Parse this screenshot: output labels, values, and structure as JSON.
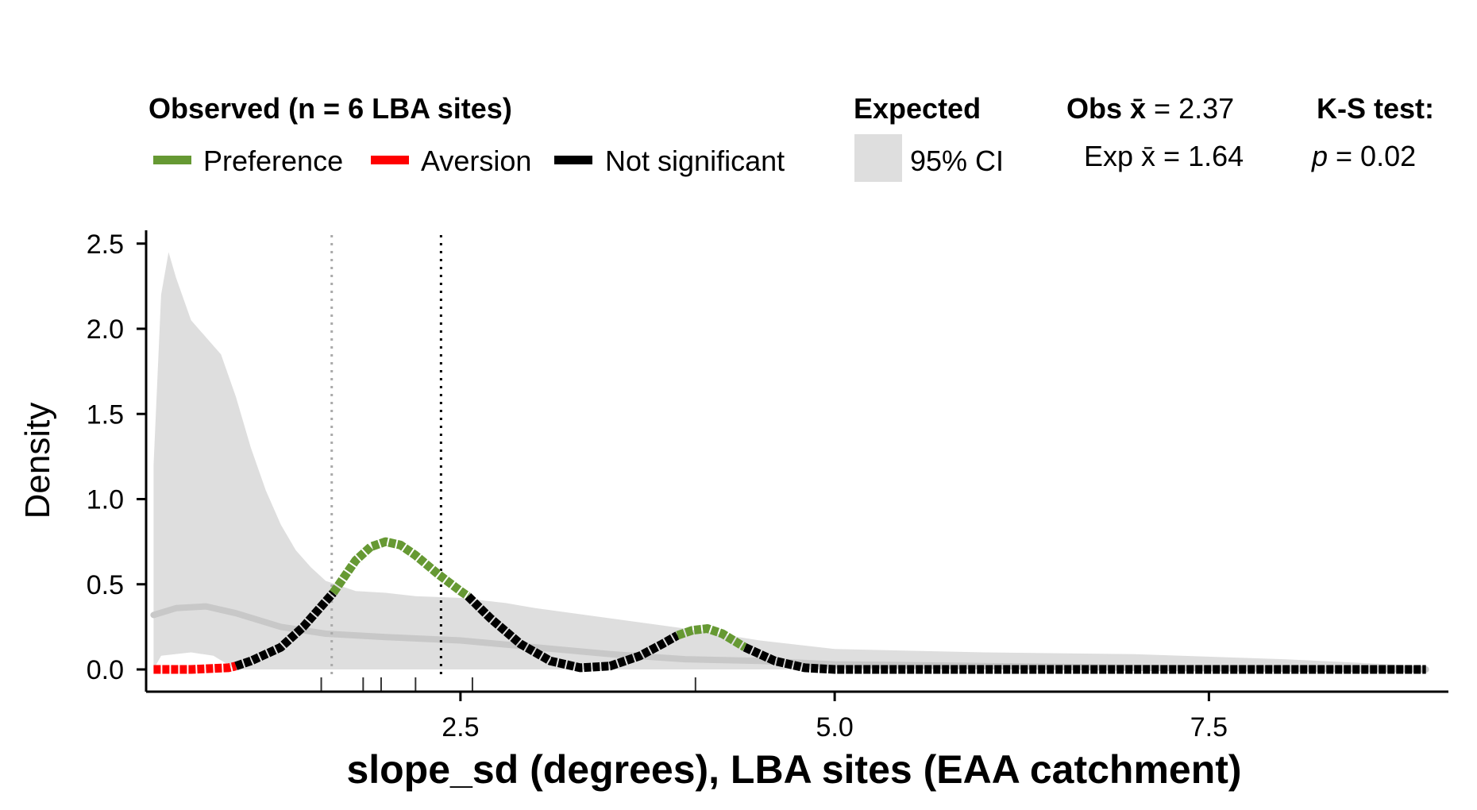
{
  "legend": {
    "observed_title": "Observed (n = 6 LBA sites)",
    "items": [
      {
        "label": "Preference",
        "color": "#669933"
      },
      {
        "label": "Aversion",
        "color": "#ff0000"
      },
      {
        "label": "Not significant",
        "color": "#000000"
      }
    ],
    "expected_title": "Expected",
    "ci_label": "95% CI",
    "ci_color": "#dedede",
    "obs_mean_prefix": "Obs ",
    "obs_mean_value": " = 2.37",
    "exp_mean_prefix": "Exp ",
    "exp_mean_value": " = 1.64",
    "ks_title": "K-S test:",
    "ks_p_symbol": "p",
    "ks_p_value": " = 0.02"
  },
  "chart_data": {
    "type": "area",
    "xlabel": "slope_sd (degrees), LBA sites (EAA catchment)",
    "ylabel": "Density",
    "xlim": [
      0.4,
      9.1
    ],
    "ylim": [
      0,
      2.6
    ],
    "x_ticks": [
      2.5,
      5.0,
      7.5
    ],
    "x_tick_labels": [
      "2.5",
      "5.0",
      "7.5"
    ],
    "y_ticks": [
      0.0,
      0.5,
      1.0,
      1.5,
      2.0,
      2.5
    ],
    "y_tick_labels": [
      "0.0",
      "0.5",
      "1.0",
      "1.5",
      "2.0",
      "2.5"
    ],
    "grid": false,
    "legend_position": "top",
    "ci_upper": [
      [
        0.45,
        1.2
      ],
      [
        0.5,
        2.2
      ],
      [
        0.55,
        2.45
      ],
      [
        0.6,
        2.3
      ],
      [
        0.7,
        2.05
      ],
      [
        0.8,
        1.95
      ],
      [
        0.9,
        1.85
      ],
      [
        1.0,
        1.6
      ],
      [
        1.1,
        1.3
      ],
      [
        1.2,
        1.05
      ],
      [
        1.3,
        0.85
      ],
      [
        1.4,
        0.7
      ],
      [
        1.5,
        0.6
      ],
      [
        1.6,
        0.52
      ],
      [
        1.8,
        0.46
      ],
      [
        2.0,
        0.45
      ],
      [
        2.2,
        0.43
      ],
      [
        2.5,
        0.42
      ],
      [
        2.8,
        0.39
      ],
      [
        3.0,
        0.36
      ],
      [
        3.5,
        0.3
      ],
      [
        4.0,
        0.24
      ],
      [
        4.5,
        0.17
      ],
      [
        5.0,
        0.12
      ],
      [
        6.0,
        0.1
      ],
      [
        7.0,
        0.09
      ],
      [
        8.0,
        0.06
      ],
      [
        8.95,
        0.02
      ]
    ],
    "ci_lower": [
      [
        0.45,
        0.0
      ],
      [
        0.5,
        0.08
      ],
      [
        0.7,
        0.1
      ],
      [
        0.85,
        0.08
      ],
      [
        1.0,
        0.0
      ],
      [
        8.95,
        0.0
      ]
    ],
    "expected_mean_curve": [
      [
        0.45,
        0.32
      ],
      [
        0.6,
        0.36
      ],
      [
        0.8,
        0.37
      ],
      [
        1.0,
        0.33
      ],
      [
        1.3,
        0.25
      ],
      [
        1.6,
        0.21
      ],
      [
        2.0,
        0.19
      ],
      [
        2.5,
        0.17
      ],
      [
        3.0,
        0.13
      ],
      [
        3.5,
        0.09
      ],
      [
        4.0,
        0.06
      ],
      [
        4.5,
        0.05
      ],
      [
        5.0,
        0.03
      ],
      [
        6.0,
        0.02
      ],
      [
        7.0,
        0.01
      ],
      [
        8.95,
        0.0
      ]
    ],
    "observed_series": [
      {
        "name": "Aversion",
        "color": "#ff0000",
        "points": [
          [
            0.45,
            0.0
          ],
          [
            0.7,
            0.0
          ],
          [
            0.95,
            0.01
          ],
          [
            1.0,
            0.02
          ]
        ]
      },
      {
        "name": "Not significant",
        "color": "#000000",
        "points": [
          [
            1.0,
            0.02
          ],
          [
            1.1,
            0.05
          ],
          [
            1.3,
            0.13
          ],
          [
            1.45,
            0.25
          ],
          [
            1.6,
            0.4
          ],
          [
            1.65,
            0.45
          ]
        ]
      },
      {
        "name": "Preference",
        "color": "#669933",
        "points": [
          [
            1.65,
            0.45
          ],
          [
            1.8,
            0.64
          ],
          [
            1.9,
            0.72
          ],
          [
            2.0,
            0.75
          ],
          [
            2.1,
            0.73
          ],
          [
            2.2,
            0.67
          ],
          [
            2.35,
            0.56
          ],
          [
            2.5,
            0.46
          ],
          [
            2.55,
            0.43
          ]
        ]
      },
      {
        "name": "Not significant",
        "color": "#000000",
        "points": [
          [
            2.55,
            0.43
          ],
          [
            2.7,
            0.3
          ],
          [
            2.9,
            0.15
          ],
          [
            3.1,
            0.05
          ],
          [
            3.3,
            0.01
          ],
          [
            3.5,
            0.02
          ],
          [
            3.7,
            0.08
          ],
          [
            3.85,
            0.15
          ],
          [
            3.95,
            0.2
          ]
        ]
      },
      {
        "name": "Preference",
        "color": "#669933",
        "points": [
          [
            3.95,
            0.2
          ],
          [
            4.05,
            0.23
          ],
          [
            4.15,
            0.24
          ],
          [
            4.25,
            0.21
          ],
          [
            4.4,
            0.13
          ]
        ]
      },
      {
        "name": "Not significant",
        "color": "#000000",
        "points": [
          [
            4.4,
            0.13
          ],
          [
            4.6,
            0.05
          ],
          [
            4.8,
            0.01
          ],
          [
            5.0,
            0.0
          ],
          [
            8.95,
            0.0
          ]
        ]
      }
    ],
    "vlines": [
      {
        "name": "Expected mean",
        "x": 1.64,
        "color": "#aaaaaa"
      },
      {
        "name": "Observed mean",
        "x": 2.37,
        "color": "#000000"
      }
    ],
    "rug": [
      1.57,
      1.85,
      1.97,
      2.2,
      2.58,
      4.07
    ]
  }
}
